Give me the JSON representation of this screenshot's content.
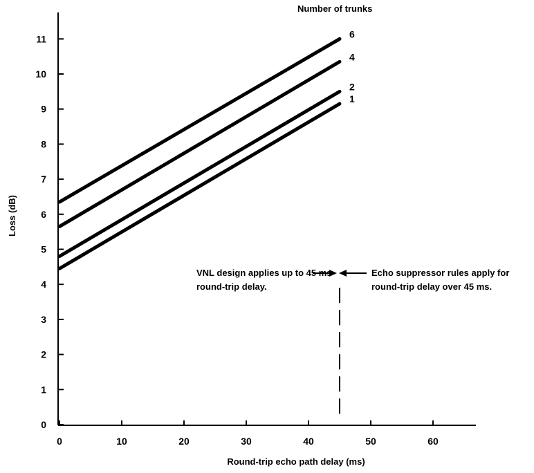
{
  "chart_data": {
    "type": "line",
    "xlabel": "Round-trip echo path delay (ms)",
    "ylabel": "Loss (dB)",
    "xlim": [
      0,
      67
    ],
    "ylim": [
      0,
      12
    ],
    "x_ticks": [
      "0",
      "10",
      "20",
      "30",
      "40",
      "50",
      "60"
    ],
    "y_ticks": [
      "0",
      "1",
      "2",
      "3",
      "4",
      "5",
      "6",
      "7",
      "8",
      "9",
      "10",
      "11"
    ],
    "grid": false,
    "legend_title": "Number of trunks",
    "series": [
      {
        "name": "6",
        "x": [
          0,
          45
        ],
        "y": [
          6.35,
          11.0
        ]
      },
      {
        "name": "4",
        "x": [
          0,
          45
        ],
        "y": [
          5.65,
          10.35
        ]
      },
      {
        "name": "2",
        "x": [
          0,
          45
        ],
        "y": [
          4.8,
          9.5
        ]
      },
      {
        "name": "1",
        "x": [
          0,
          45
        ],
        "y": [
          4.45,
          9.15
        ]
      }
    ],
    "reference_line": {
      "x": 45,
      "y_range": [
        0,
        3.9
      ],
      "style": "dashed"
    },
    "annotations": {
      "left_line1": "VNL design applies up to 45 ms",
      "left_line2": "round-trip delay.",
      "right_line1": "Echo suppressor rules apply for",
      "right_line2": "round-trip delay over 45 ms."
    }
  }
}
